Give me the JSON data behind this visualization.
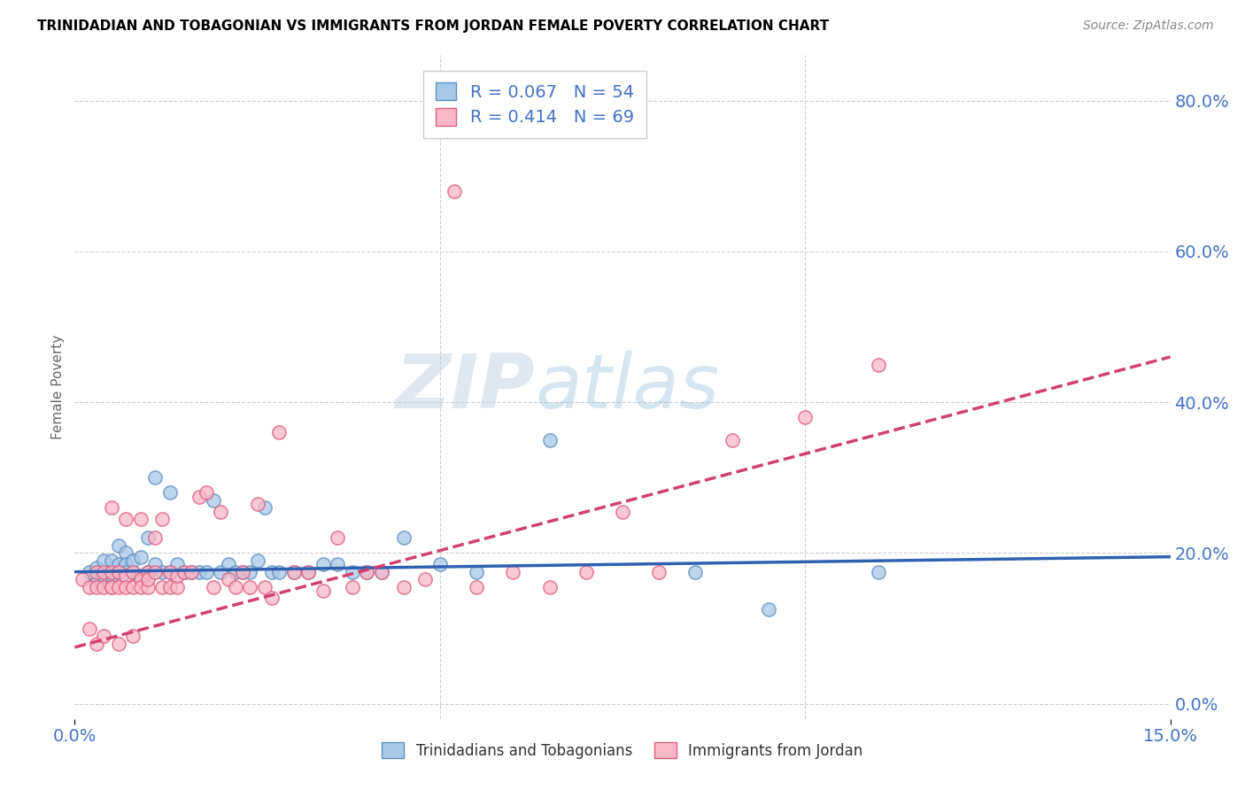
{
  "title": "TRINIDADIAN AND TOBAGONIAN VS IMMIGRANTS FROM JORDAN FEMALE POVERTY CORRELATION CHART",
  "source": "Source: ZipAtlas.com",
  "ylabel": "Female Poverty",
  "yticks": [
    "0.0%",
    "20.0%",
    "40.0%",
    "60.0%",
    "80.0%"
  ],
  "ytick_vals": [
    0.0,
    0.2,
    0.4,
    0.6,
    0.8
  ],
  "xlim": [
    0.0,
    0.15
  ],
  "ylim": [
    -0.02,
    0.86
  ],
  "legend_entries": [
    {
      "label": "Trinidadians and Tobagonians",
      "color_fill": "#a8c8e8",
      "color_edge": "#7ab0d8",
      "R": "0.067",
      "N": "54"
    },
    {
      "label": "Immigrants from Jordan",
      "color_fill": "#f8b8c8",
      "color_edge": "#e88098",
      "R": "0.414",
      "N": "69"
    }
  ],
  "scatter_blue_x": [
    0.002,
    0.003,
    0.003,
    0.004,
    0.004,
    0.005,
    0.005,
    0.005,
    0.006,
    0.006,
    0.006,
    0.007,
    0.007,
    0.007,
    0.008,
    0.008,
    0.009,
    0.009,
    0.01,
    0.01,
    0.011,
    0.011,
    0.012,
    0.013,
    0.013,
    0.014,
    0.015,
    0.016,
    0.017,
    0.018,
    0.019,
    0.02,
    0.021,
    0.022,
    0.023,
    0.024,
    0.025,
    0.026,
    0.027,
    0.028,
    0.03,
    0.032,
    0.034,
    0.036,
    0.038,
    0.04,
    0.042,
    0.045,
    0.05,
    0.055,
    0.065,
    0.085,
    0.095,
    0.11
  ],
  "scatter_blue_y": [
    0.175,
    0.18,
    0.16,
    0.19,
    0.17,
    0.175,
    0.19,
    0.17,
    0.21,
    0.175,
    0.185,
    0.2,
    0.185,
    0.175,
    0.175,
    0.19,
    0.195,
    0.17,
    0.22,
    0.175,
    0.185,
    0.3,
    0.175,
    0.175,
    0.28,
    0.185,
    0.175,
    0.175,
    0.175,
    0.175,
    0.27,
    0.175,
    0.185,
    0.175,
    0.175,
    0.175,
    0.19,
    0.26,
    0.175,
    0.175,
    0.175,
    0.175,
    0.185,
    0.185,
    0.175,
    0.175,
    0.175,
    0.22,
    0.185,
    0.175,
    0.35,
    0.175,
    0.125,
    0.175
  ],
  "scatter_pink_x": [
    0.001,
    0.002,
    0.002,
    0.003,
    0.003,
    0.003,
    0.004,
    0.004,
    0.004,
    0.005,
    0.005,
    0.005,
    0.005,
    0.006,
    0.006,
    0.006,
    0.007,
    0.007,
    0.007,
    0.008,
    0.008,
    0.008,
    0.009,
    0.009,
    0.009,
    0.01,
    0.01,
    0.01,
    0.011,
    0.011,
    0.012,
    0.012,
    0.013,
    0.013,
    0.014,
    0.014,
    0.015,
    0.016,
    0.017,
    0.018,
    0.019,
    0.02,
    0.021,
    0.022,
    0.023,
    0.024,
    0.025,
    0.026,
    0.027,
    0.028,
    0.03,
    0.032,
    0.034,
    0.036,
    0.038,
    0.04,
    0.042,
    0.045,
    0.048,
    0.052,
    0.055,
    0.06,
    0.065,
    0.07,
    0.075,
    0.08,
    0.09,
    0.1,
    0.11
  ],
  "scatter_pink_y": [
    0.165,
    0.155,
    0.1,
    0.155,
    0.175,
    0.08,
    0.175,
    0.155,
    0.09,
    0.175,
    0.155,
    0.26,
    0.155,
    0.175,
    0.155,
    0.08,
    0.17,
    0.155,
    0.245,
    0.175,
    0.155,
    0.09,
    0.165,
    0.245,
    0.155,
    0.175,
    0.155,
    0.165,
    0.175,
    0.22,
    0.155,
    0.245,
    0.155,
    0.175,
    0.155,
    0.17,
    0.175,
    0.175,
    0.275,
    0.28,
    0.155,
    0.255,
    0.165,
    0.155,
    0.175,
    0.155,
    0.265,
    0.155,
    0.14,
    0.36,
    0.175,
    0.175,
    0.15,
    0.22,
    0.155,
    0.175,
    0.175,
    0.155,
    0.165,
    0.68,
    0.155,
    0.175,
    0.155,
    0.175,
    0.255,
    0.175,
    0.35,
    0.38,
    0.45
  ],
  "trend_blue_x0": 0.0,
  "trend_blue_x1": 0.15,
  "trend_blue_y0": 0.175,
  "trend_blue_y1": 0.195,
  "trend_pink_x0": 0.0,
  "trend_pink_x1": 0.15,
  "trend_pink_y0": 0.075,
  "trend_pink_y1": 0.46,
  "dot_color_blue_fill": "#a8c8e8",
  "dot_color_blue_edge": "#6090c0",
  "dot_color_pink_fill": "#f8b8c8",
  "dot_color_pink_edge": "#e06080",
  "trend_color_blue": "#3060b0",
  "trend_color_pink": "#d04070",
  "grid_color": "#cccccc",
  "title_color": "#000000",
  "axis_label_color": "#4472c4",
  "watermark_color": "#ccddeeff",
  "background_color": "#ffffff"
}
